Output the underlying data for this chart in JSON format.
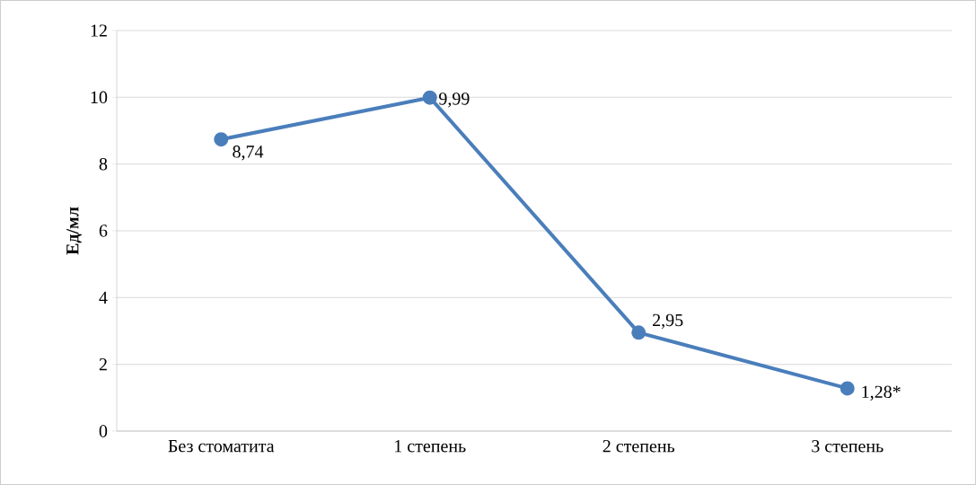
{
  "chart_data": {
    "type": "line",
    "ylabel": "Ед/мл",
    "categories": [
      "Без стоматита",
      "1 степень",
      "2 степень",
      "3 степень"
    ],
    "values": [
      8.74,
      9.99,
      2.95,
      1.28
    ],
    "value_labels": [
      "8,74",
      "9,99",
      "2,95",
      "1,28*"
    ],
    "color": "#4a7ebb",
    "marker": "circle",
    "line_style": "solid",
    "ylim": [
      0,
      12
    ],
    "yticks": [
      0,
      2,
      4,
      6,
      8,
      10,
      12
    ],
    "grid": "y"
  }
}
